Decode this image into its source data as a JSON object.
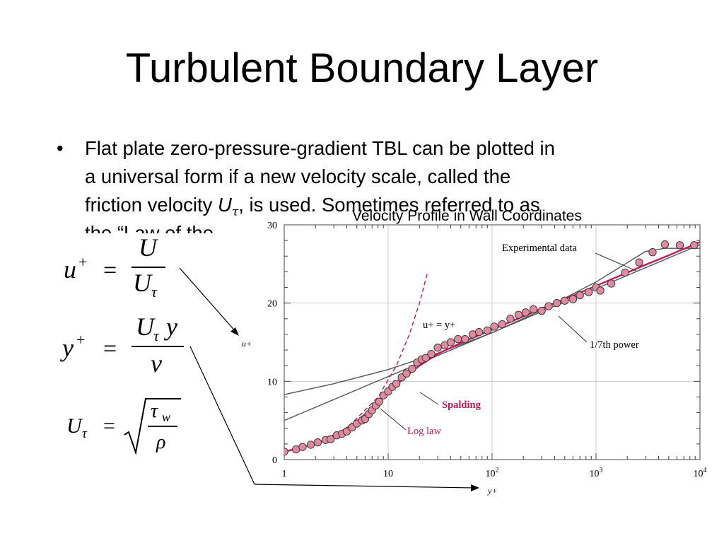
{
  "slide": {
    "title": "Turbulent Boundary Layer",
    "bullet_symbol": "•",
    "bullet_lines": [
      "Flat plate zero-pressure-gradient TBL can be plotted in",
      "a universal form if a new velocity scale, called the",
      "friction velocity",
      ", is used.  Sometimes referred to as",
      "the “Law of the"
    ],
    "u_symbol": "U",
    "tau_symbol": "τ"
  },
  "equations": {
    "eq1": {
      "lhs": "u",
      "sup": "+",
      "eq": "=",
      "num": "U",
      "den": "U",
      "den_sub": "τ"
    },
    "eq2": {
      "lhs": "y",
      "sup": "+",
      "eq": "=",
      "num": "U",
      "num_sub": "τ",
      "num_tail": "y",
      "den": "ν"
    },
    "eq3": {
      "lhs": "U",
      "lhs_sub": "τ",
      "eq": "=",
      "num": "τ",
      "num_sub": "w",
      "den": "ρ"
    }
  },
  "chart_data": {
    "type": "scatter",
    "title": "Velocity Profile in Wall Coordinates",
    "xlabel": "y+",
    "ylabel": "u+",
    "xscale": "log",
    "xlim": [
      1,
      10000
    ],
    "ylim": [
      0,
      30
    ],
    "grid": true,
    "x_ticks": [
      "1",
      "10",
      "10^2",
      "10^3",
      "10^4"
    ],
    "y_ticks": [
      "0",
      "10",
      "20",
      "30"
    ],
    "colors": {
      "data": "#e08aa0",
      "spalding": "#c2185b",
      "lines": "#555555",
      "marker_edge": "#333333"
    },
    "series": [
      {
        "name": "Experimental data",
        "kind": "points",
        "x": [
          1.0,
          1.3,
          1.5,
          1.8,
          2.1,
          2.5,
          2.8,
          3.2,
          3.6,
          4.0,
          4.5,
          5.0,
          5.6,
          6.0,
          6.5,
          7.0,
          7.6,
          8.2,
          9.0,
          10.0,
          11.0,
          12.0,
          13.5,
          15.0,
          17.0,
          19.0,
          21.0,
          23.0,
          26.0,
          30.0,
          35.0,
          40.0,
          47.0,
          55.0,
          65.0,
          75.0,
          90.0,
          105.0,
          125.0,
          150.0,
          180.0,
          210.0,
          250.0,
          300.0,
          350.0,
          420.0,
          500.0,
          600.0,
          700.0,
          850.0,
          1000.0,
          1100.0,
          1400.0,
          1900.0,
          2600.0,
          3500.0,
          4600.0,
          6400.0,
          8800.0
        ],
        "y": [
          1.0,
          1.3,
          1.6,
          1.9,
          2.2,
          2.5,
          2.6,
          3.1,
          3.3,
          3.6,
          4.1,
          4.6,
          5.0,
          5.2,
          5.8,
          6.3,
          6.9,
          7.4,
          8.2,
          8.7,
          9.3,
          9.7,
          10.5,
          11.0,
          11.6,
          12.4,
          12.8,
          13.0,
          13.5,
          14.3,
          14.6,
          15.0,
          15.4,
          15.4,
          16.0,
          16.3,
          16.5,
          17.0,
          17.3,
          18.0,
          18.5,
          18.8,
          19.2,
          19.0,
          19.6,
          20.0,
          20.3,
          20.5,
          21.0,
          21.4,
          22.0,
          21.6,
          22.5,
          23.9,
          25.2,
          26.5,
          27.5,
          27.4,
          27.4
        ]
      },
      {
        "name": "u+ = y+",
        "kind": "line",
        "style": "dashed",
        "x": [
          1,
          2,
          4,
          8,
          12,
          16,
          20,
          24
        ],
        "y": [
          1,
          2,
          4,
          8,
          12,
          16,
          20,
          24
        ]
      },
      {
        "name": "Spalding",
        "kind": "line",
        "x": [
          1,
          2,
          3,
          5,
          7,
          10,
          15,
          20,
          30,
          50,
          100,
          200,
          300,
          500,
          1000,
          2000,
          3000,
          5000,
          10000
        ],
        "y": [
          1.0,
          2.0,
          2.98,
          4.87,
          6.6,
          8.6,
          10.7,
          12.0,
          13.5,
          14.9,
          16.6,
          18.3,
          19.3,
          20.5,
          22.2,
          23.9,
          24.9,
          26.1,
          27.8
        ]
      },
      {
        "name": "Log law",
        "kind": "line",
        "x": [
          1,
          10000
        ],
        "y": [
          5.0,
          27.46
        ]
      },
      {
        "name": "1/7th power",
        "kind": "line",
        "x": [
          1,
          3,
          10,
          30,
          100,
          300,
          1000,
          3000,
          4600,
          10000
        ],
        "y": [
          8.3,
          9.7,
          11.5,
          13.6,
          16.2,
          19.1,
          22.7,
          26.6,
          27.0,
          27.0
        ]
      }
    ],
    "annotations": [
      "Experimental data",
      "u+ = y+",
      "1/7th power",
      "Spalding",
      "Log law"
    ]
  }
}
